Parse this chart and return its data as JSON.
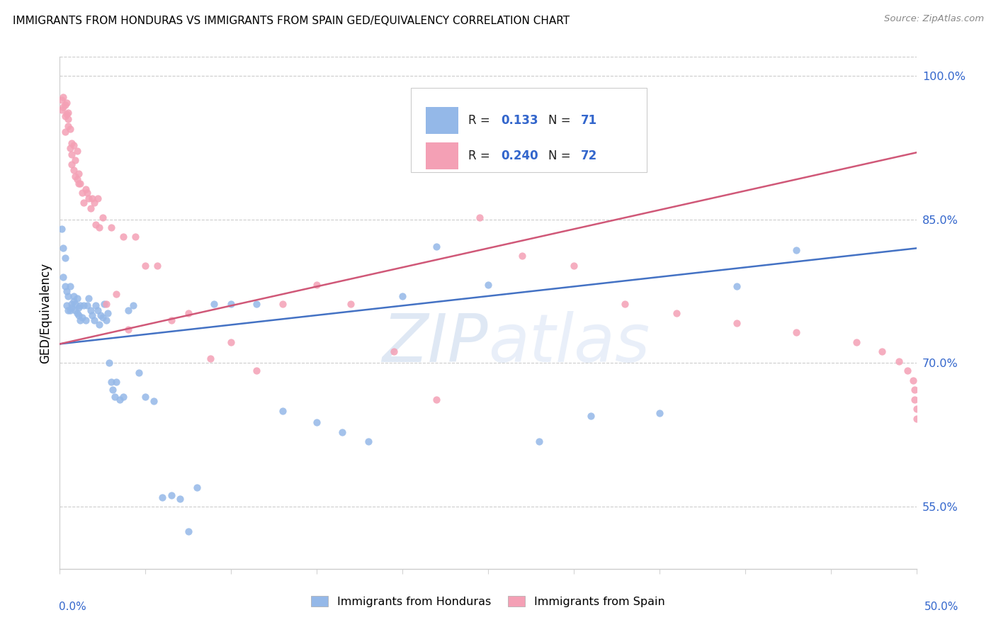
{
  "title": "IMMIGRANTS FROM HONDURAS VS IMMIGRANTS FROM SPAIN GED/EQUIVALENCY CORRELATION CHART",
  "source": "Source: ZipAtlas.com",
  "ylabel": "GED/Equivalency",
  "ytick_vals": [
    0.55,
    0.7,
    0.85,
    1.0
  ],
  "ytick_labels": [
    "55.0%",
    "70.0%",
    "85.0%",
    "100.0%"
  ],
  "xtick_vals": [
    0.0,
    0.05,
    0.1,
    0.15,
    0.2,
    0.25,
    0.3,
    0.35,
    0.4,
    0.45,
    0.5
  ],
  "xlim": [
    0.0,
    0.5
  ],
  "ylim": [
    0.485,
    1.02
  ],
  "legend_label_blue": "Immigrants from Honduras",
  "legend_label_pink": "Immigrants from Spain",
  "R_blue": 0.133,
  "N_blue": 71,
  "R_pink": 0.24,
  "N_pink": 72,
  "color_blue": "#94b8e8",
  "color_pink": "#f4a0b5",
  "color_line_blue": "#4472c4",
  "color_line_pink": "#d05878",
  "color_text_blue": "#3366cc",
  "watermark_zip": "ZIP",
  "watermark_atlas": "atlas",
  "blue_x": [
    0.001,
    0.002,
    0.002,
    0.003,
    0.003,
    0.004,
    0.004,
    0.005,
    0.005,
    0.006,
    0.006,
    0.007,
    0.007,
    0.008,
    0.008,
    0.009,
    0.009,
    0.01,
    0.01,
    0.011,
    0.011,
    0.012,
    0.012,
    0.013,
    0.014,
    0.015,
    0.016,
    0.017,
    0.018,
    0.019,
    0.02,
    0.021,
    0.022,
    0.023,
    0.024,
    0.025,
    0.026,
    0.027,
    0.028,
    0.029,
    0.03,
    0.031,
    0.032,
    0.033,
    0.035,
    0.037,
    0.04,
    0.043,
    0.046,
    0.05,
    0.055,
    0.06,
    0.065,
    0.07,
    0.075,
    0.08,
    0.09,
    0.1,
    0.115,
    0.13,
    0.15,
    0.165,
    0.18,
    0.2,
    0.22,
    0.25,
    0.28,
    0.31,
    0.35,
    0.395,
    0.43
  ],
  "blue_y": [
    0.84,
    0.79,
    0.82,
    0.78,
    0.81,
    0.76,
    0.775,
    0.755,
    0.77,
    0.755,
    0.78,
    0.762,
    0.758,
    0.765,
    0.77,
    0.762,
    0.755,
    0.768,
    0.752,
    0.758,
    0.75,
    0.745,
    0.76,
    0.748,
    0.76,
    0.745,
    0.76,
    0.768,
    0.755,
    0.75,
    0.745,
    0.76,
    0.755,
    0.74,
    0.75,
    0.748,
    0.762,
    0.745,
    0.752,
    0.7,
    0.68,
    0.672,
    0.665,
    0.68,
    0.662,
    0.665,
    0.755,
    0.76,
    0.69,
    0.665,
    0.66,
    0.56,
    0.562,
    0.558,
    0.524,
    0.57,
    0.762,
    0.762,
    0.762,
    0.65,
    0.638,
    0.628,
    0.618,
    0.77,
    0.822,
    0.782,
    0.618,
    0.645,
    0.648,
    0.78,
    0.818
  ],
  "pink_x": [
    0.001,
    0.001,
    0.002,
    0.002,
    0.003,
    0.003,
    0.003,
    0.004,
    0.004,
    0.005,
    0.005,
    0.005,
    0.006,
    0.006,
    0.007,
    0.007,
    0.007,
    0.008,
    0.008,
    0.009,
    0.009,
    0.01,
    0.01,
    0.011,
    0.011,
    0.012,
    0.013,
    0.014,
    0.015,
    0.016,
    0.017,
    0.018,
    0.019,
    0.02,
    0.021,
    0.022,
    0.023,
    0.025,
    0.027,
    0.03,
    0.033,
    0.037,
    0.04,
    0.044,
    0.05,
    0.057,
    0.065,
    0.075,
    0.088,
    0.1,
    0.115,
    0.13,
    0.15,
    0.17,
    0.195,
    0.22,
    0.245,
    0.27,
    0.3,
    0.33,
    0.36,
    0.395,
    0.43,
    0.465,
    0.48,
    0.49,
    0.495,
    0.498,
    0.499,
    0.499,
    0.5,
    0.5
  ],
  "pink_y": [
    0.965,
    0.975,
    0.968,
    0.978,
    0.942,
    0.958,
    0.97,
    0.972,
    0.96,
    0.955,
    0.948,
    0.962,
    0.945,
    0.925,
    0.93,
    0.918,
    0.908,
    0.928,
    0.902,
    0.912,
    0.895,
    0.922,
    0.892,
    0.888,
    0.898,
    0.888,
    0.878,
    0.868,
    0.882,
    0.878,
    0.872,
    0.862,
    0.872,
    0.868,
    0.845,
    0.872,
    0.842,
    0.852,
    0.762,
    0.842,
    0.772,
    0.832,
    0.735,
    0.832,
    0.802,
    0.802,
    0.745,
    0.752,
    0.705,
    0.722,
    0.692,
    0.762,
    0.782,
    0.762,
    0.712,
    0.662,
    0.852,
    0.812,
    0.802,
    0.762,
    0.752,
    0.742,
    0.732,
    0.722,
    0.712,
    0.702,
    0.692,
    0.682,
    0.672,
    0.662,
    0.652,
    0.642
  ],
  "blue_line_x": [
    0.0,
    0.5
  ],
  "blue_line_y": [
    0.72,
    0.82
  ],
  "pink_line_x": [
    0.0,
    0.5
  ],
  "pink_line_y": [
    0.72,
    0.92
  ]
}
